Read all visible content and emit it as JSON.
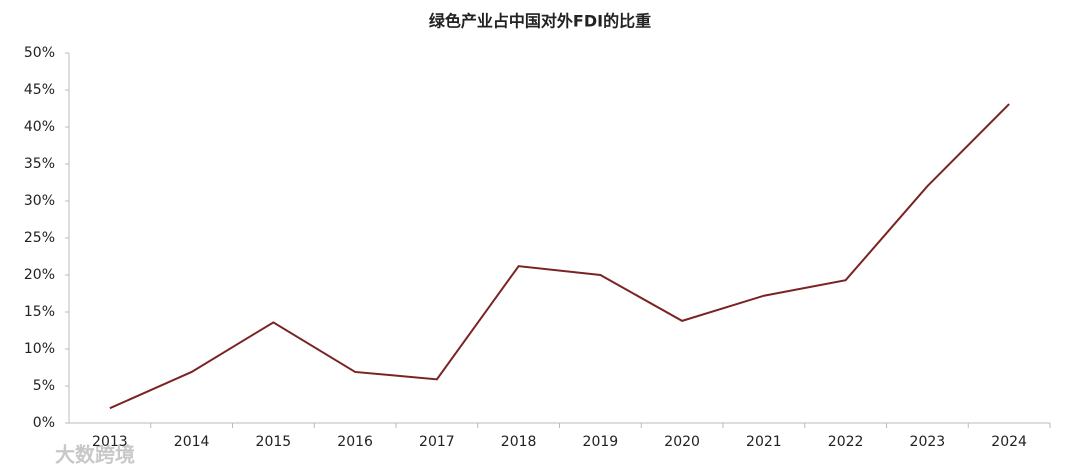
{
  "chart_data": {
    "type": "line",
    "title": "绿色产业占中国对外FDI的比重",
    "categories": [
      "2013",
      "2014",
      "2015",
      "2016",
      "2017",
      "2018",
      "2019",
      "2020",
      "2021",
      "2022",
      "2023",
      "2024"
    ],
    "series": [
      {
        "color": "#7b2323",
        "values": [
          2.0,
          6.9,
          13.6,
          6.9,
          5.9,
          21.2,
          20.0,
          13.8,
          17.2,
          19.3,
          32.0,
          43.1
        ]
      }
    ],
    "ylim": [
      0,
      50
    ],
    "yticks": [
      {
        "value": 0,
        "label": "0%"
      },
      {
        "value": 5,
        "label": "5%"
      },
      {
        "value": 10,
        "label": "10%"
      },
      {
        "value": 15,
        "label": "15%"
      },
      {
        "value": 20,
        "label": "20%"
      },
      {
        "value": 25,
        "label": "25%"
      },
      {
        "value": 30,
        "label": "30%"
      },
      {
        "value": 35,
        "label": "35%"
      },
      {
        "value": 40,
        "label": "40%"
      },
      {
        "value": 45,
        "label": "45%"
      },
      {
        "value": 50,
        "label": "50%"
      }
    ],
    "grid": false
  },
  "watermark": "大数跨境"
}
